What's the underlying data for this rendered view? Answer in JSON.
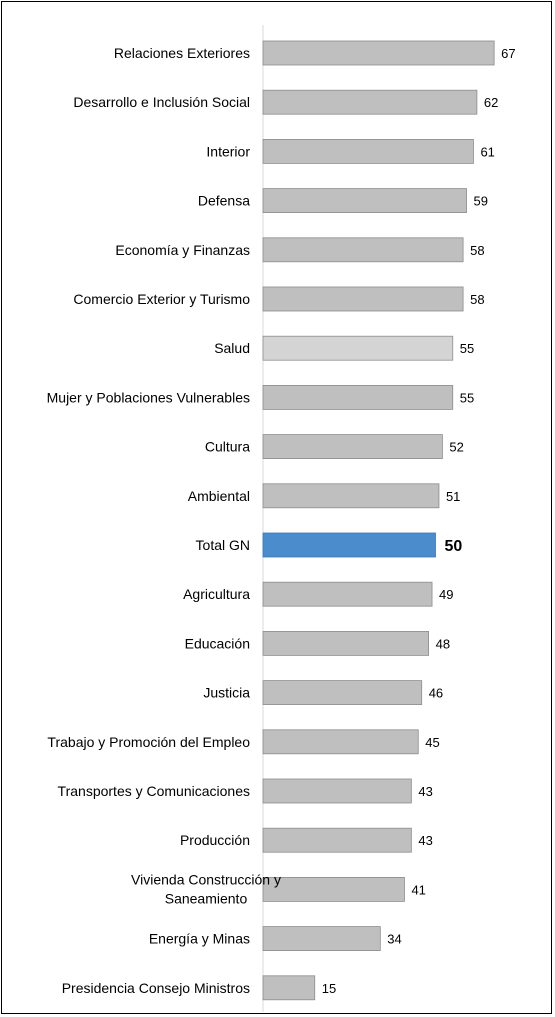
{
  "chart_data": {
    "type": "bar",
    "orientation": "horizontal",
    "title": "",
    "xlabel": "",
    "ylabel": "",
    "xlim": [
      0,
      100
    ],
    "grid": false,
    "legend": "none",
    "categories": [
      "Relaciones Exteriores",
      "Desarrollo e Inclusión Social",
      "Interior",
      "Defensa",
      "Economía y Finanzas",
      "Comercio Exterior y Turismo",
      "Salud",
      "Mujer y Poblaciones Vulnerables",
      "Cultura",
      "Ambiental",
      "Total GN",
      "Agricultura",
      "Educación",
      "Justicia",
      "Trabajo y Promoción del Empleo",
      "Transportes y Comunicaciones",
      "Producción",
      "Vivienda Construcción y Saneamiento",
      "Energía y Minas",
      "Presidencia Consejo Ministros"
    ],
    "values": [
      67,
      62,
      61,
      59,
      58,
      58,
      55,
      55,
      52,
      51,
      50,
      49,
      48,
      46,
      45,
      43,
      43,
      41,
      34,
      15
    ],
    "highlight": "Total GN",
    "colors": {
      "bar": "#bfbfbf",
      "bar_light": "#d4d4d4",
      "bar_stroke": "#8c8c8c",
      "highlight": "#4a8ccc",
      "highlight_label": "#3d7dc0",
      "light_bar_category": "Salud"
    }
  }
}
